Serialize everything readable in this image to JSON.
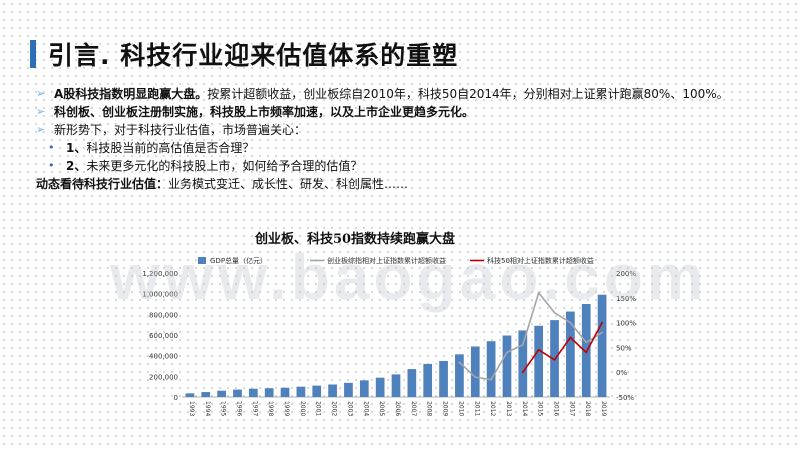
{
  "slide": {
    "title": "引言. 科技行业迎来估值体系的重塑",
    "bullets": [
      {
        "bold": "A股科技指数明显跑赢大盘。",
        "text": "按累计超额收益，创业板综自2010年，科技50自2014年，分别相对上证累计跑赢80%、100%。"
      },
      {
        "bold": "科创板、创业板注册制实施，科技股上市频率加速，以及上市企业更趋多元化。",
        "text": ""
      },
      {
        "bold": "",
        "text": "新形势下，对于科技行业估值，市场普遍关心："
      },
      {
        "num": "1、",
        "text": "科技股当前的高估值是否合理？"
      },
      {
        "num": "2、",
        "text": "未来更多元化的科技股上市，如何给予合理的估值？"
      }
    ],
    "closing": {
      "bold": "动态看待科技行业估值：",
      "text": "业务模式变迁、成长性、研发、科创属性……"
    },
    "marker": "➢",
    "sub_marker": "•",
    "watermark": "www.baogao.com"
  },
  "colors": {
    "accent": "#2f6fb5",
    "bar": "#4f81bd",
    "line_gray": "#a6a6a6",
    "line_red": "#c00000"
  },
  "chart_data": {
    "type": "bar",
    "title": "创业板、科技50指数持续跑赢大盘",
    "categories": [
      "1993",
      "1994",
      "1995",
      "1996",
      "1997",
      "1998",
      "1999",
      "2000",
      "2001",
      "2002",
      "2003",
      "2004",
      "2005",
      "2006",
      "2007",
      "2008",
      "2009",
      "2010",
      "2011",
      "2012",
      "2013",
      "2014",
      "2015",
      "2016",
      "2017",
      "2018",
      "2019"
    ],
    "ylim": [
      0,
      1200000
    ],
    "y_ticks": [
      "0",
      "200,000",
      "400,000",
      "600,000",
      "800,000",
      "1,000,000",
      "1,200,000"
    ],
    "y2lim": [
      -50,
      200
    ],
    "y2_ticks": [
      "-50%",
      "0%",
      "50%",
      "100%",
      "150%",
      "200%"
    ],
    "series": [
      {
        "name": "GDP总量（亿元）",
        "type": "bar",
        "axis": "left",
        "values": [
          35000,
          48000,
          61000,
          72000,
          80000,
          85000,
          90000,
          100000,
          110000,
          121000,
          137000,
          161000,
          187000,
          219000,
          270000,
          320000,
          349000,
          413000,
          489000,
          540000,
          595000,
          644000,
          689000,
          744000,
          827000,
          900000,
          990000
        ]
      },
      {
        "name": "创业板综指相对上证指数累计超额收益",
        "type": "line",
        "axis": "right",
        "x": [
          "2010",
          "2011",
          "2012",
          "2013",
          "2014",
          "2015",
          "2016",
          "2017",
          "2018",
          "2019"
        ],
        "values": [
          20,
          -10,
          -15,
          40,
          55,
          160,
          120,
          100,
          60,
          80
        ]
      },
      {
        "name": "科技50相对上证指数累计超额收益",
        "type": "line",
        "axis": "right",
        "x": [
          "2014",
          "2015",
          "2016",
          "2017",
          "2018",
          "2019"
        ],
        "values": [
          0,
          45,
          25,
          70,
          40,
          100
        ]
      }
    ]
  }
}
